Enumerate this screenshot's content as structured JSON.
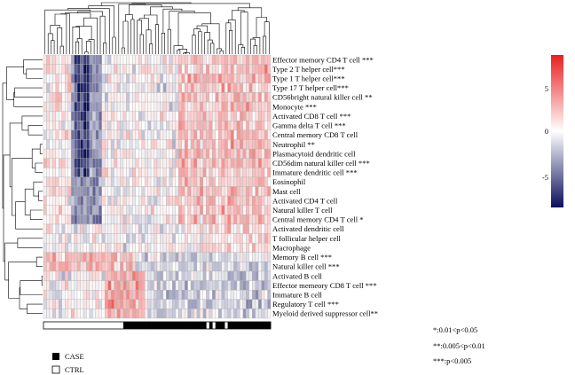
{
  "chart_data": {
    "type": "heatmap",
    "title": "",
    "rows": [
      "Effector memory CD4 T cell ***",
      "Type 2 T helper cell***",
      "Type 1 T helper cell***",
      "Type 17 T helper cell***",
      "CD56bright natural killer cell **",
      "Monocyte ***",
      "Activated CD8 T cell ***",
      "Gamma delta T cell ***",
      "Central memory CD8 T cell",
      "Neutrophil **",
      "Plasmacytoid dendritic cell",
      "CD56dim natural killer cell ***",
      "Immature dendritic cell ***",
      "Eosinophil",
      "Mast cell",
      "Activated CD4 T cell",
      "Natural killer T cell",
      "Central memory CD4 T cell *",
      "Activated dendritic cell",
      "T follicular helper cell",
      "Macrophage",
      "Memory B cell ***",
      "Natural killer cell ***",
      "Activated B cell",
      "Effector memeory CD8 T cell ***",
      "Immature B cell",
      "Regulatory T cell ***",
      "Myeloid derived suppressor cell**"
    ],
    "n_columns": 74,
    "color_scale": {
      "min": -8,
      "max": 8,
      "ticks": [
        "5",
        "0",
        "-5"
      ],
      "low_color": "#0a0f5c",
      "mid_color": "#ffffff",
      "high_color": "#e8201e"
    },
    "annotation": {
      "case_columns_start": 26,
      "white_gap_columns": [
        53,
        55,
        59
      ]
    },
    "legend": {
      "groups": [
        {
          "label": "CASE",
          "color": "#000000"
        },
        {
          "label": "CTRL",
          "color": "#ffffff"
        }
      ]
    },
    "significance_notes": [
      "*:0.01<p<0.05",
      "**:0.005<p<0.01",
      "***:p<0.005"
    ]
  }
}
